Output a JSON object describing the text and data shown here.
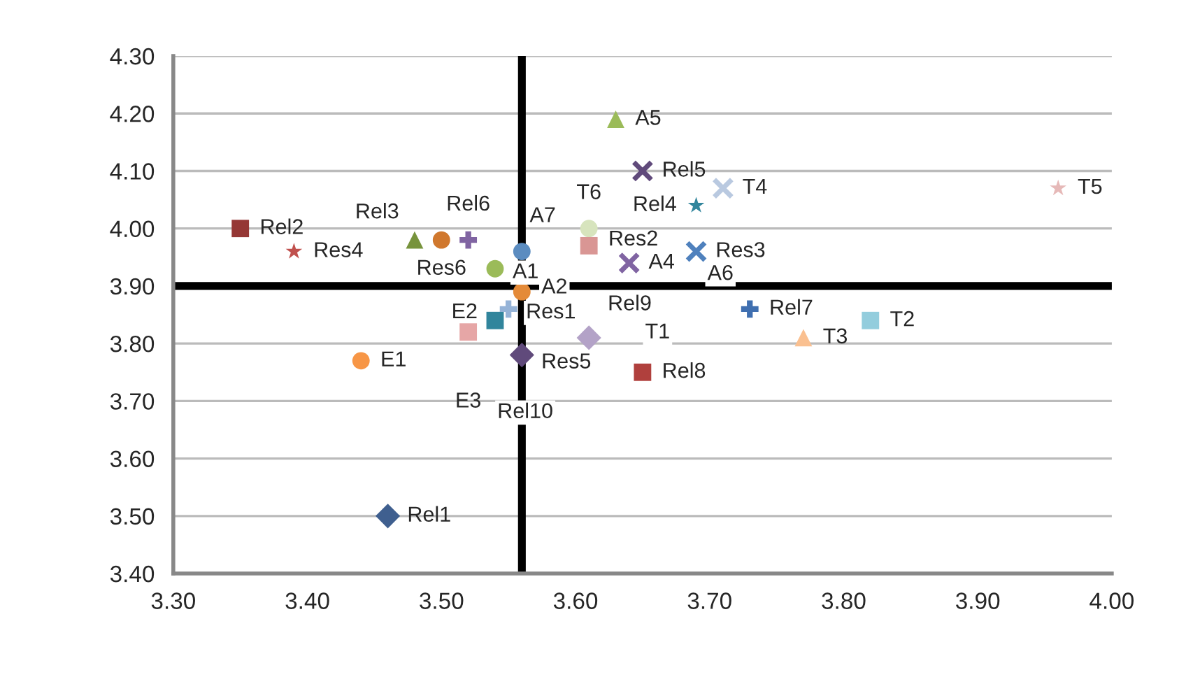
{
  "chart_data": {
    "type": "scatter",
    "xlim": [
      3.3,
      4.0
    ],
    "ylim": [
      3.4,
      4.3
    ],
    "xticks": [
      {
        "value": 3.3,
        "label": "3.30"
      },
      {
        "value": 3.4,
        "label": "3.40"
      },
      {
        "value": 3.5,
        "label": "3.50"
      },
      {
        "value": 3.6,
        "label": "3.60"
      },
      {
        "value": 3.7,
        "label": "3.70"
      },
      {
        "value": 3.8,
        "label": "3.80"
      },
      {
        "value": 3.9,
        "label": "3.90"
      },
      {
        "value": 4.0,
        "label": "4.00"
      }
    ],
    "yticks": [
      {
        "value": 3.4,
        "label": "3.40"
      },
      {
        "value": 3.5,
        "label": "3.50"
      },
      {
        "value": 3.6,
        "label": "3.60"
      },
      {
        "value": 3.7,
        "label": "3.70"
      },
      {
        "value": 3.8,
        "label": "3.80"
      },
      {
        "value": 3.9,
        "label": "3.90"
      },
      {
        "value": 4.0,
        "label": "4.00"
      },
      {
        "value": 4.1,
        "label": "4.10"
      },
      {
        "value": 4.2,
        "label": "4.20"
      },
      {
        "value": 4.3,
        "label": "4.30"
      }
    ],
    "grid": "y",
    "legend": false,
    "ref_lines": [
      {
        "axis": "x",
        "value": 3.56,
        "color": "#000000"
      },
      {
        "axis": "y",
        "value": 3.9,
        "color": "#000000"
      }
    ],
    "annotations": [
      "T1",
      "A6",
      "Rel10"
    ],
    "series": [
      {
        "name": "Rel1",
        "color": "#3f5f8f",
        "marker": "diamond",
        "x": [
          3.46
        ],
        "values": [
          3.5
        ]
      },
      {
        "name": "E1",
        "color": "#f79646",
        "marker": "circle",
        "x": [
          3.44
        ],
        "values": [
          3.77
        ]
      },
      {
        "name": "Rel2",
        "color": "#953735",
        "marker": "square",
        "x": [
          3.35
        ],
        "values": [
          4.0
        ]
      },
      {
        "name": "Res4",
        "color": "#c0504d",
        "marker": "star",
        "x": [
          3.39
        ],
        "values": [
          3.96
        ]
      },
      {
        "name": "Rel3",
        "color": "#77933c",
        "marker": "triangle",
        "x": [
          3.48
        ],
        "values": [
          3.98
        ]
      },
      {
        "name": "Res6",
        "color": "#d0782e",
        "marker": "circle",
        "x": [
          3.5
        ],
        "values": [
          3.98
        ]
      },
      {
        "name": "Rel6",
        "color": "#8064a2",
        "marker": "plus",
        "x": [
          3.52
        ],
        "values": [
          3.98
        ]
      },
      {
        "name": "A1",
        "color": "#9bbb59",
        "marker": "circle",
        "x": [
          3.54
        ],
        "values": [
          3.93
        ]
      },
      {
        "name": "A7",
        "color": "#5b8cc0",
        "marker": "circle",
        "x": [
          3.56
        ],
        "values": [
          3.96
        ]
      },
      {
        "name": "A2",
        "color": "#e48a38",
        "marker": "circle",
        "x": [
          3.56
        ],
        "values": [
          3.89
        ]
      },
      {
        "name": "E2",
        "color": "#31859c",
        "marker": "square",
        "x": [
          3.54
        ],
        "values": [
          3.84
        ]
      },
      {
        "name": "Res1",
        "color": "#95b3d7",
        "marker": "plus",
        "x": [
          3.55
        ],
        "values": [
          3.86
        ]
      },
      {
        "name": "E3",
        "color": "#e6a6a6",
        "marker": "square",
        "x": [
          3.52
        ],
        "values": [
          3.82
        ]
      },
      {
        "name": "Res5",
        "color": "#604a7b",
        "marker": "diamond",
        "x": [
          3.56
        ],
        "values": [
          3.78
        ]
      },
      {
        "name": "Rel9",
        "color": "#b3a2c7",
        "marker": "diamond",
        "x": [
          3.61
        ],
        "values": [
          3.81
        ]
      },
      {
        "name": "Rel8",
        "color": "#b0403d",
        "marker": "square",
        "x": [
          3.65
        ],
        "values": [
          3.75
        ]
      },
      {
        "name": "T6",
        "color": "#d7e4bd",
        "marker": "circle",
        "x": [
          3.61
        ],
        "values": [
          4.0
        ]
      },
      {
        "name": "Res2",
        "color": "#d99694",
        "marker": "square",
        "x": [
          3.61
        ],
        "values": [
          3.97
        ]
      },
      {
        "name": "A4",
        "color": "#8064a2",
        "marker": "cross",
        "x": [
          3.64
        ],
        "values": [
          3.94
        ]
      },
      {
        "name": "A5",
        "color": "#9bbb59",
        "marker": "triangle",
        "x": [
          3.63
        ],
        "values": [
          4.19
        ]
      },
      {
        "name": "Rel5",
        "color": "#604a7b",
        "marker": "cross",
        "x": [
          3.65
        ],
        "values": [
          4.1
        ]
      },
      {
        "name": "Rel4",
        "color": "#31859c",
        "marker": "star",
        "x": [
          3.69
        ],
        "values": [
          4.04
        ]
      },
      {
        "name": "T4",
        "color": "#b9c9e0",
        "marker": "cross",
        "x": [
          3.71
        ],
        "values": [
          4.07
        ]
      },
      {
        "name": "Res3",
        "color": "#4f81bd",
        "marker": "cross",
        "x": [
          3.69
        ],
        "values": [
          3.96
        ]
      },
      {
        "name": "Rel7",
        "color": "#3f6fb0",
        "marker": "plus",
        "x": [
          3.73
        ],
        "values": [
          3.86
        ]
      },
      {
        "name": "T3",
        "color": "#fac090",
        "marker": "triangle",
        "x": [
          3.77
        ],
        "values": [
          3.81
        ]
      },
      {
        "name": "T2",
        "color": "#93cddd",
        "marker": "square",
        "x": [
          3.82
        ],
        "values": [
          3.84
        ]
      },
      {
        "name": "T5",
        "color": "#e6b9b8",
        "marker": "star",
        "x": [
          3.96
        ],
        "values": [
          4.07
        ]
      }
    ]
  }
}
